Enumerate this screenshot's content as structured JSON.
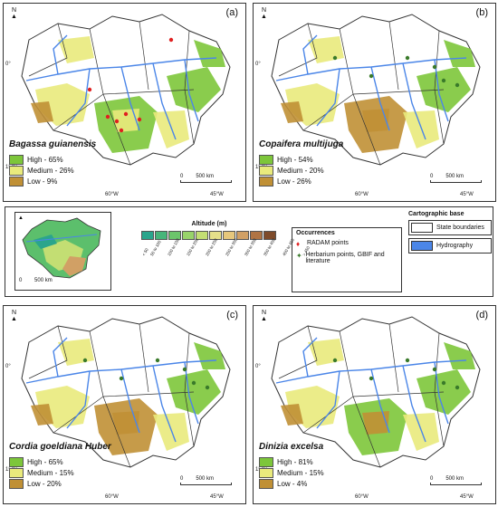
{
  "colors": {
    "high": "#7dc63a",
    "medium": "#e9ea7c",
    "low": "#c09035",
    "hydro": "#4b86e8",
    "boundary": "#333333",
    "radam": "#e02020",
    "herbarium": "#3a7a2a"
  },
  "panels": [
    {
      "letter": "(a)",
      "species": "Bagassa guianensis",
      "legend": [
        {
          "label": "High - 65%",
          "class": "high"
        },
        {
          "label": "Medium - 26%",
          "class": "medium"
        },
        {
          "label": "Low - 9%",
          "class": "low"
        }
      ]
    },
    {
      "letter": "(b)",
      "species": "Copaifera multijuga",
      "legend": [
        {
          "label": "High - 54%",
          "class": "high"
        },
        {
          "label": "Medium - 20%",
          "class": "medium"
        },
        {
          "label": "Low - 26%",
          "class": "low"
        }
      ]
    },
    {
      "letter": "(c)",
      "species": "Cordia goeldiana Huber",
      "legend": [
        {
          "label": "High - 65%",
          "class": "high"
        },
        {
          "label": "Medium - 15%",
          "class": "medium"
        },
        {
          "label": "Low - 20%",
          "class": "low"
        }
      ]
    },
    {
      "letter": "(d)",
      "species": "Dinizia excelsa",
      "legend": [
        {
          "label": "High - 81%",
          "class": "high"
        },
        {
          "label": "Medium - 15%",
          "class": "medium"
        },
        {
          "label": "Low - 4%",
          "class": "low"
        }
      ]
    }
  ],
  "graticule": {
    "lat_top": "0°",
    "lat_bottom": "15°S",
    "lon_left": "60°W",
    "lon_right": "45°W"
  },
  "scalebar": {
    "zero": "0",
    "end": "500 km"
  },
  "north": "N",
  "altitude": {
    "title": "Altitude (m)",
    "classes": [
      "< 50",
      "50 to 100",
      "100 to 150",
      "150 to 200",
      "200 to 250",
      "250 to 300",
      "300 to 350",
      "350 to 400",
      "400 to 450",
      "> 450"
    ],
    "colors": [
      "#2aa58c",
      "#47b57a",
      "#6cc56b",
      "#98d36a",
      "#c3de73",
      "#e5e08a",
      "#e6c77c",
      "#d1a065",
      "#b07444",
      "#7e4b2b"
    ]
  },
  "occurrences": {
    "title": "Occurrences",
    "radam": "RADAM points",
    "herbarium": "Herbarium points, GBIF and literature"
  },
  "cartographic": {
    "title": "Cartographic base",
    "boundaries": "State boundaries",
    "hydro": "Hydrography"
  },
  "inset_scale": {
    "zero": "0",
    "end": "500 km"
  }
}
